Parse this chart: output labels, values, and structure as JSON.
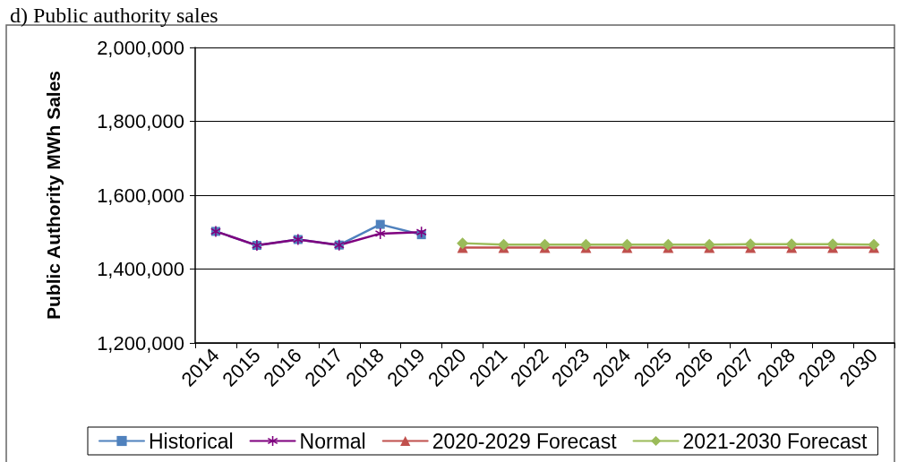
{
  "chart_data": {
    "type": "line",
    "title": "d) Public authority sales",
    "ylabel": "Public Authority MWh Sales",
    "categories": [
      "2014",
      "2015",
      "2016",
      "2017",
      "2018",
      "2019",
      "2020",
      "2021",
      "2022",
      "2023",
      "2024",
      "2025",
      "2026",
      "2027",
      "2028",
      "2029",
      "2030"
    ],
    "series": [
      {
        "name": "Historical",
        "color": "#4f81bd",
        "marker": "square",
        "values": [
          1502000,
          1464000,
          1480000,
          1465000,
          1521000,
          1493000,
          null,
          null,
          null,
          null,
          null,
          null,
          null,
          null,
          null,
          null,
          null
        ]
      },
      {
        "name": "Normal",
        "color": "#7f007f",
        "marker": "cross",
        "values": [
          1502000,
          1464000,
          1480000,
          1465000,
          1496000,
          1500000,
          null,
          null,
          null,
          null,
          null,
          null,
          null,
          null,
          null,
          null,
          null
        ]
      },
      {
        "name": "2020-2029 Forecast",
        "color": "#c0504d",
        "marker": "triangle",
        "values": [
          null,
          null,
          null,
          null,
          null,
          null,
          1458000,
          1458000,
          1458000,
          1458000,
          1458000,
          1458000,
          1458000,
          1458000,
          1458000,
          1458000,
          1458000
        ]
      },
      {
        "name": "2021-2030 Forecast",
        "color": "#9bbb59",
        "marker": "diamond",
        "values": [
          null,
          null,
          null,
          null,
          null,
          null,
          1470000,
          1466000,
          1466000,
          1466000,
          1466000,
          1466000,
          1466000,
          1467000,
          1467000,
          1467000,
          1466000
        ]
      }
    ],
    "ylim": [
      1200000,
      2000000
    ],
    "yticks": [
      {
        "value": 1200000,
        "label": "1,200,000"
      },
      {
        "value": 1400000,
        "label": "1,400,000"
      },
      {
        "value": 1600000,
        "label": "1,600,000"
      },
      {
        "value": 1800000,
        "label": "1,800,000"
      },
      {
        "value": 2000000,
        "label": "2,000,000"
      }
    ],
    "grid": "y",
    "legend": "bottom"
  }
}
